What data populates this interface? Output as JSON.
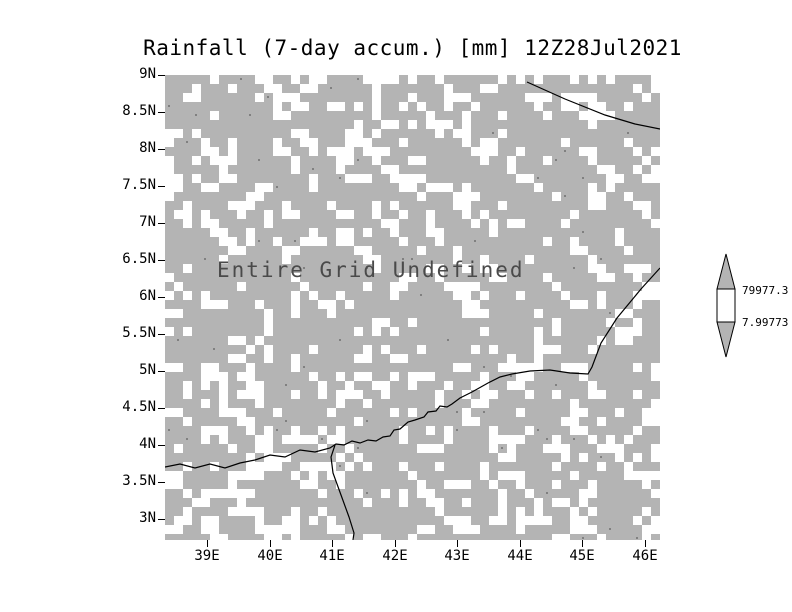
{
  "header": {
    "title": "Rainfall (7-day accum.) [mm] 12Z28Jul2021"
  },
  "plot": {
    "undefined_message": "Entire Grid Undefined",
    "fill_gray": "#b4b4b4",
    "coastline_color": "#000000",
    "message_color": "#4a4a4a"
  },
  "axes": {
    "y_ticks": [
      "9N",
      "8.5N",
      "8N",
      "7.5N",
      "7N",
      "6.5N",
      "6N",
      "5.5N",
      "5N",
      "4.5N",
      "4N",
      "3.5N",
      "3N"
    ],
    "x_ticks": [
      "39E",
      "40E",
      "41E",
      "42E",
      "43E",
      "44E",
      "45E",
      "46E"
    ]
  },
  "colorbar": {
    "labels": [
      "79977.3",
      "7.99773"
    ]
  },
  "chart_data": {
    "type": "heatmap",
    "title": "Rainfall (7-day accum.) [mm] 12Z28Jul2021",
    "variable": "Rainfall (7-day accum.)",
    "units": "mm",
    "valid_time": "12Z28Jul2021",
    "x_tick_labels": [
      "39E",
      "40E",
      "41E",
      "42E",
      "43E",
      "44E",
      "45E",
      "46E"
    ],
    "y_tick_labels": [
      "9N",
      "8.5N",
      "8N",
      "7.5N",
      "7N",
      "6.5N",
      "6N",
      "5.5N",
      "5N",
      "4.5N",
      "4N",
      "3.5N",
      "3N"
    ],
    "x_range_deg_east": [
      38.3,
      46.25
    ],
    "y_range_deg_north": [
      2.7,
      9.0
    ],
    "values": null,
    "annotation": "Entire Grid Undefined",
    "colorbar_levels": [
      "79977.3",
      "7.99773"
    ],
    "legend_position": "right",
    "grid": false
  }
}
